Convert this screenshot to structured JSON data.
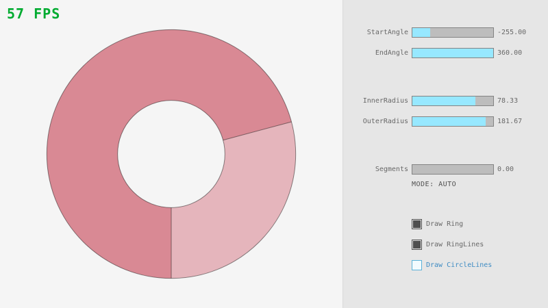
{
  "fps": {
    "text": "57 FPS",
    "color": "#00ab30"
  },
  "ring": {
    "color_single": "#e5b5bc",
    "color_overlap": "#d98994",
    "outline_color": "rgba(0,0,0,0.45)"
  },
  "panel": {
    "slider_fill_color": "#97e8ff",
    "sliders": [
      {
        "label": "StartAngle",
        "value": "-255.00",
        "fill": 0.217
      },
      {
        "label": "EndAngle",
        "value": "360.00",
        "fill": 1
      },
      {
        "label": "InnerRadius",
        "value": "78.33",
        "fill": 0.783
      },
      {
        "label": "OuterRadius",
        "value": "181.67",
        "fill": 0.908
      },
      {
        "label": "Segments",
        "value": "0.00",
        "fill": 0
      }
    ],
    "mode_text": "MODE: AUTO",
    "checkboxes": [
      {
        "label": "Draw Ring",
        "checked": true
      },
      {
        "label": "Draw RingLines",
        "checked": true
      },
      {
        "label": "Draw CircleLines",
        "checked": false
      }
    ]
  }
}
